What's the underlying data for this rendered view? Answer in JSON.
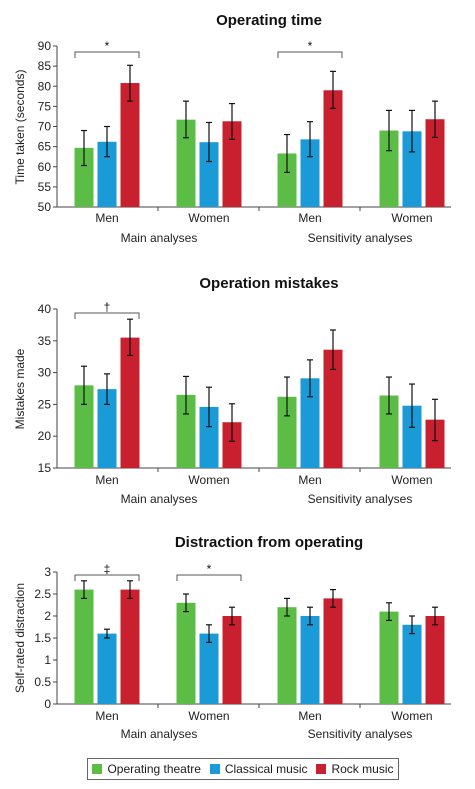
{
  "colors": {
    "operating_theatre": "#5cbd46",
    "classical_music": "#1a9ad6",
    "rock_music": "#c8202f"
  },
  "legend": [
    {
      "label": "Operating theatre",
      "color": "#5cbd46"
    },
    {
      "label": "Classical music",
      "color": "#1a9ad6"
    },
    {
      "label": "Rock music",
      "color": "#c8202f"
    }
  ],
  "chart_data": [
    {
      "type": "bar",
      "title": "Operating time",
      "ylabel": "Time taken (seconds)",
      "ylim": [
        50,
        90
      ],
      "yticks": [
        50,
        55,
        60,
        65,
        70,
        75,
        80,
        85,
        90
      ],
      "categories": [
        "Men",
        "Women",
        "Men",
        "Women"
      ],
      "groups": [
        "Main analyses",
        "Sensitivity analyses"
      ],
      "series": [
        {
          "name": "Operating theatre",
          "values": [
            64.7,
            71.7,
            63.3,
            69.0
          ],
          "err_low": [
            60.3,
            67.2,
            58.6,
            64.0
          ],
          "err_high": [
            69.0,
            76.3,
            68.0,
            74.0
          ]
        },
        {
          "name": "Classical music",
          "values": [
            66.2,
            66.1,
            66.8,
            68.8
          ],
          "err_low": [
            62.5,
            61.3,
            62.5,
            63.7
          ],
          "err_high": [
            70.0,
            71.0,
            71.2,
            74.0
          ]
        },
        {
          "name": "Rock music",
          "values": [
            80.8,
            71.3,
            79.0,
            71.8
          ],
          "err_low": [
            76.3,
            66.8,
            74.5,
            67.3
          ],
          "err_high": [
            85.2,
            75.7,
            83.7,
            76.3
          ]
        }
      ],
      "significance": [
        {
          "label": "*",
          "category_index": 0
        },
        {
          "label": "*",
          "category_index": 2
        }
      ]
    },
    {
      "type": "bar",
      "title": "Operation mistakes",
      "ylabel": "Mistakes made",
      "ylim": [
        15,
        40
      ],
      "yticks": [
        15,
        20,
        25,
        30,
        35,
        40
      ],
      "categories": [
        "Men",
        "Women",
        "Men",
        "Women"
      ],
      "groups": [
        "Main analyses",
        "Sensitivity analyses"
      ],
      "series": [
        {
          "name": "Operating theatre",
          "values": [
            28.0,
            26.5,
            26.2,
            26.4
          ],
          "err_low": [
            25.0,
            23.5,
            23.2,
            23.5
          ],
          "err_high": [
            31.0,
            29.4,
            29.3,
            29.3
          ]
        },
        {
          "name": "Classical music",
          "values": [
            27.4,
            24.6,
            29.1,
            24.8
          ],
          "err_low": [
            25.0,
            21.5,
            26.2,
            21.4
          ],
          "err_high": [
            29.8,
            27.7,
            32.0,
            28.2
          ]
        },
        {
          "name": "Rock music",
          "values": [
            35.5,
            22.2,
            33.6,
            22.6
          ],
          "err_low": [
            32.7,
            19.2,
            30.5,
            19.3
          ],
          "err_high": [
            38.4,
            25.1,
            36.7,
            25.8
          ]
        }
      ],
      "significance": [
        {
          "label": "†",
          "category_index": 0
        }
      ]
    },
    {
      "type": "bar",
      "title": "Distraction from operating",
      "ylabel": "Self-rated distraction",
      "ylim": [
        0,
        3
      ],
      "yticks": [
        "0",
        "0.5",
        "1",
        "1.5",
        "2",
        "2.5",
        "3"
      ],
      "categories": [
        "Men",
        "Women",
        "Men",
        "Women"
      ],
      "groups": [
        "Main analyses",
        "Sensitivity analyses"
      ],
      "series": [
        {
          "name": "Operating theatre",
          "values": [
            2.6,
            2.3,
            2.2,
            2.1
          ],
          "err_low": [
            2.4,
            2.1,
            2.0,
            1.9
          ],
          "err_high": [
            2.8,
            2.5,
            2.4,
            2.3
          ]
        },
        {
          "name": "Classical music",
          "values": [
            1.6,
            1.6,
            2.0,
            1.8
          ],
          "err_low": [
            1.5,
            1.4,
            1.8,
            1.6
          ],
          "err_high": [
            1.7,
            1.8,
            2.2,
            2.0
          ]
        },
        {
          "name": "Rock music",
          "values": [
            2.6,
            2.0,
            2.4,
            2.0
          ],
          "err_low": [
            2.4,
            1.8,
            2.2,
            1.8
          ],
          "err_high": [
            2.8,
            2.2,
            2.6,
            2.2
          ]
        }
      ],
      "significance": [
        {
          "label": "‡",
          "category_index": 0
        },
        {
          "label": "*",
          "category_index": 1
        }
      ]
    }
  ]
}
